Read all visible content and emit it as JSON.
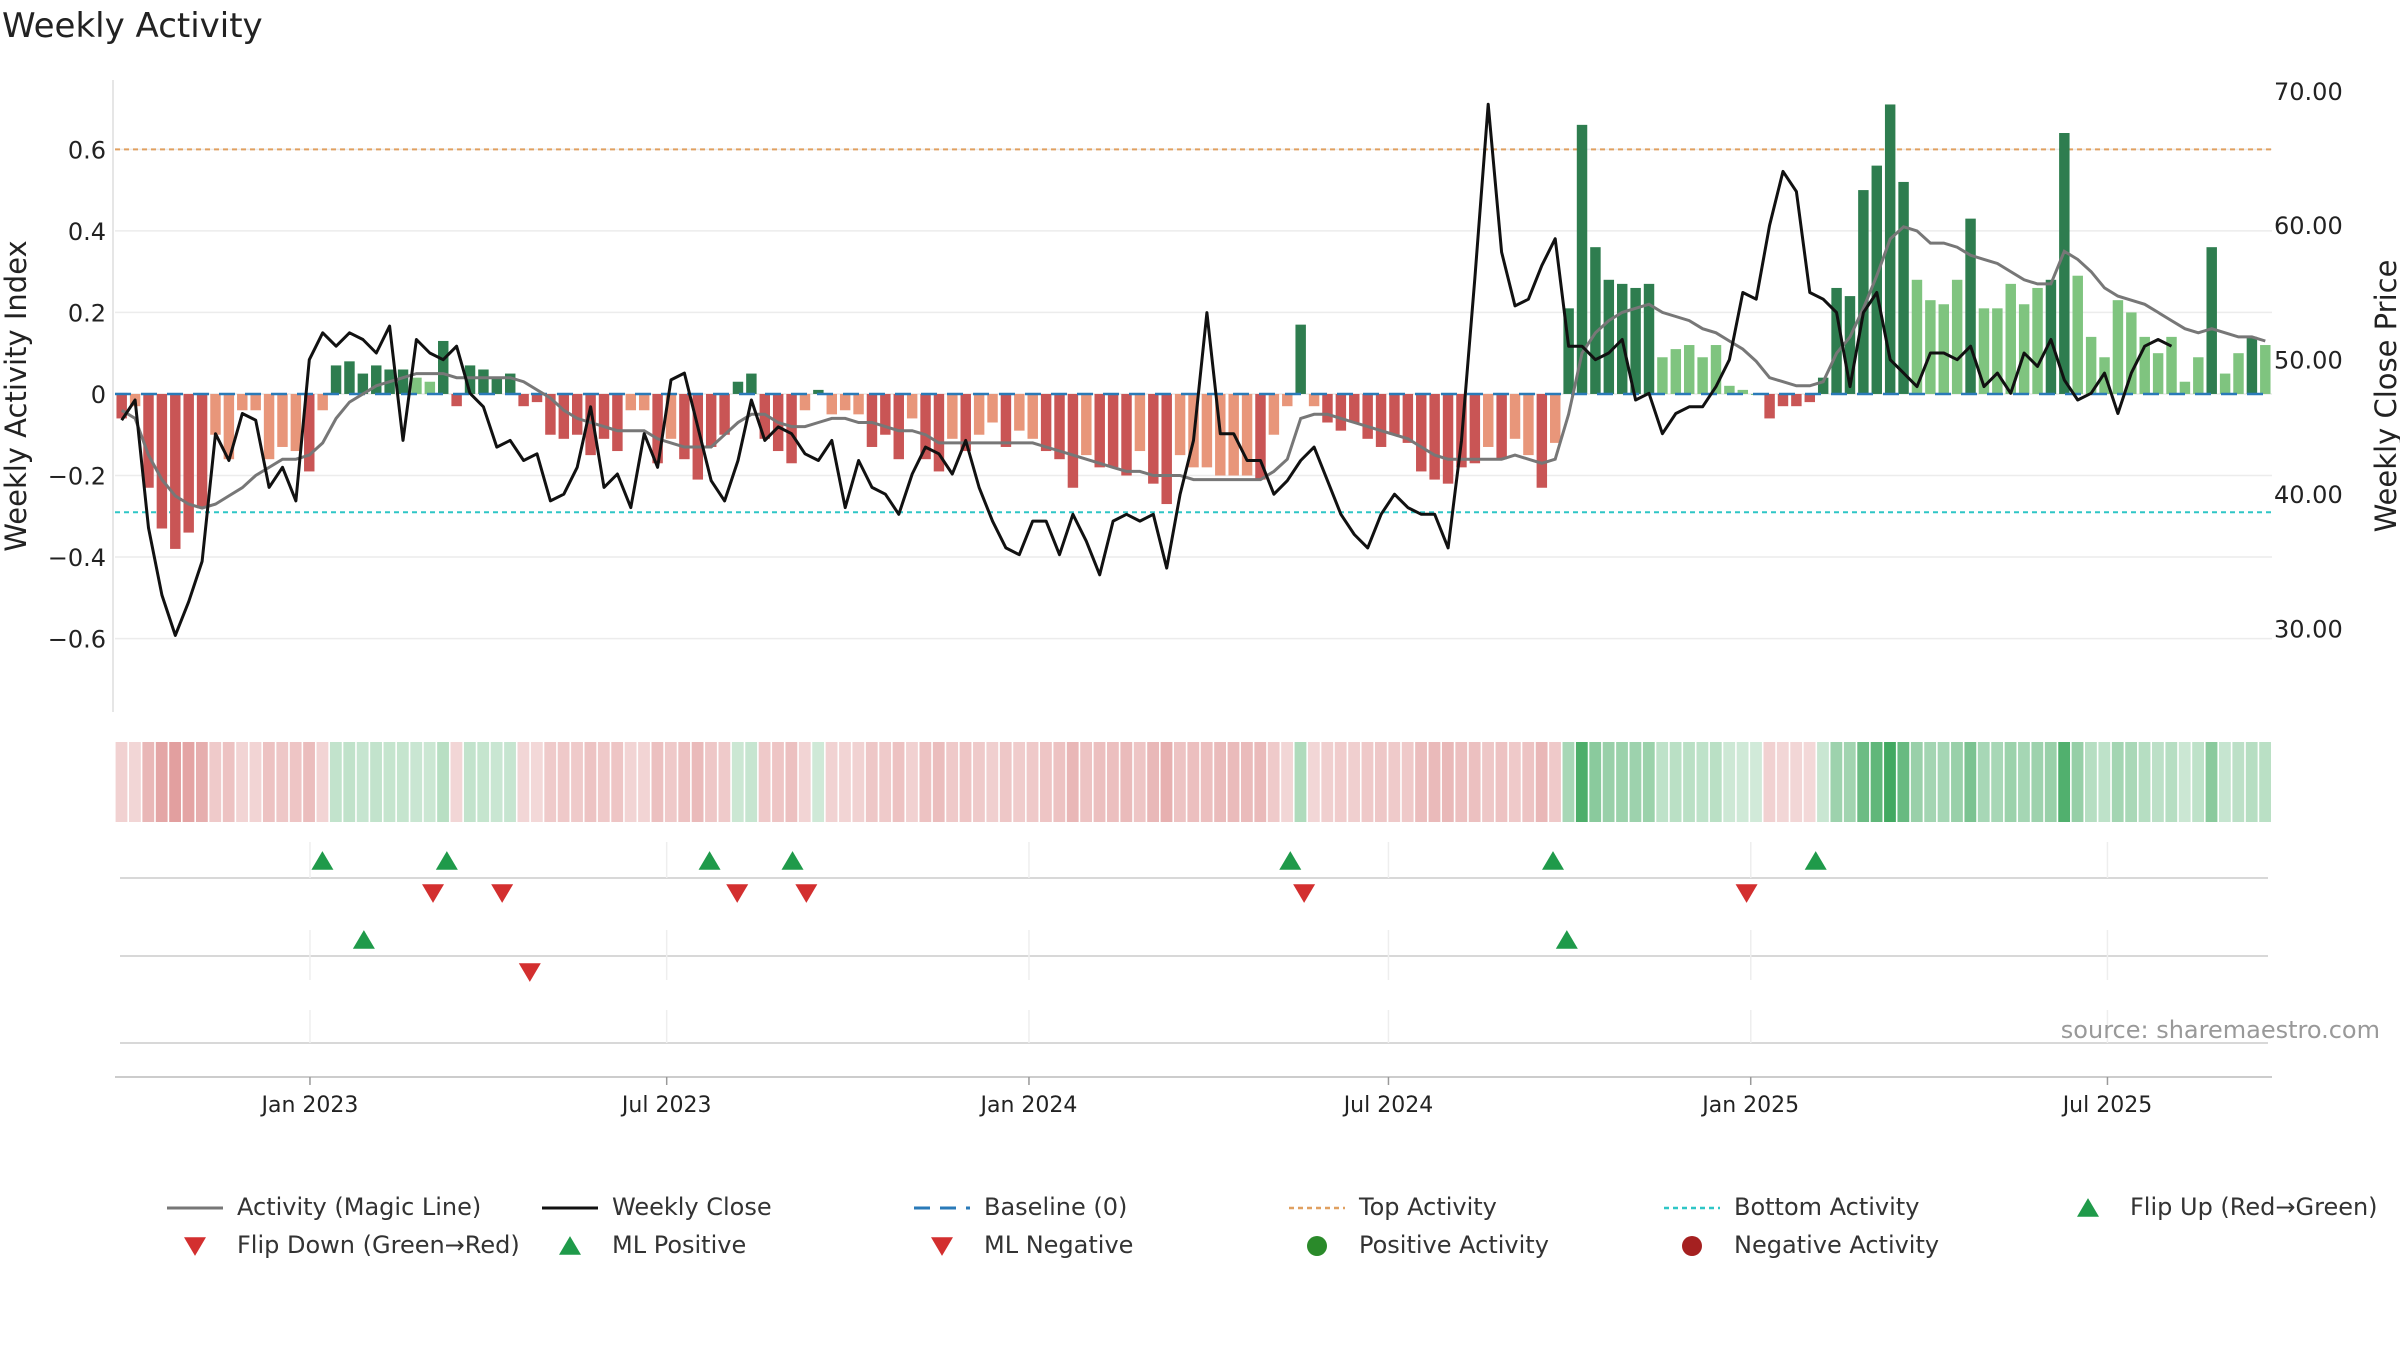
{
  "chart_data": {
    "type": "bar",
    "title": "Weekly Activity",
    "ylabel": "Weekly Activity Index",
    "ylabel_right": "Weekly Close Price",
    "ylim": [
      -0.78,
      0.77
    ],
    "ylim_right": [
      23.8,
      70.8
    ],
    "yticks": [
      {
        "v": 0.6,
        "label": "0.6"
      },
      {
        "v": 0.4,
        "label": "0.4"
      },
      {
        "v": 0.2,
        "label": "0.2"
      },
      {
        "v": 0,
        "label": "0"
      },
      {
        "v": -0.2,
        "label": "−0.2"
      },
      {
        "v": -0.4,
        "label": "−0.4"
      },
      {
        "v": -0.6,
        "label": "−0.6"
      }
    ],
    "yticks_right": [
      {
        "v": 70,
        "label": "70.00"
      },
      {
        "v": 60,
        "label": "60.00"
      },
      {
        "v": 50,
        "label": "50.00"
      },
      {
        "v": 40,
        "label": "40.00"
      },
      {
        "v": 30,
        "label": "30.00"
      }
    ],
    "x_range_weeks": [
      0,
      156
    ],
    "xticks": [
      {
        "week": 14.1,
        "label": "Jan 2023"
      },
      {
        "week": 39.9,
        "label": "Jul 2023"
      },
      {
        "week": 66.1,
        "label": "Jan 2024"
      },
      {
        "week": 92.1,
        "label": "Jul 2024"
      },
      {
        "week": 118.3,
        "label": "Jan 2025"
      },
      {
        "week": 144.1,
        "label": "Jul 2025"
      }
    ],
    "top_activity": 0.6,
    "bottom_activity": -0.29,
    "baseline": 0,
    "activity": [
      -0.06,
      -0.03,
      -0.23,
      -0.33,
      -0.38,
      -0.34,
      -0.28,
      -0.1,
      -0.16,
      -0.04,
      -0.04,
      -0.16,
      -0.13,
      -0.14,
      -0.19,
      -0.04,
      0.07,
      0.08,
      0.05,
      0.07,
      0.06,
      0.06,
      0.04,
      0.03,
      0.13,
      -0.03,
      0.07,
      0.06,
      0.04,
      0.05,
      -0.03,
      -0.02,
      -0.1,
      -0.11,
      -0.1,
      -0.15,
      -0.11,
      -0.14,
      -0.04,
      -0.04,
      -0.17,
      -0.11,
      -0.16,
      -0.21,
      -0.13,
      -0.1,
      0.03,
      0.05,
      -0.11,
      -0.14,
      -0.17,
      -0.04,
      0.01,
      -0.05,
      -0.04,
      -0.05,
      -0.13,
      -0.1,
      -0.16,
      -0.06,
      -0.16,
      -0.19,
      -0.11,
      -0.14,
      -0.1,
      -0.07,
      -0.13,
      -0.09,
      -0.11,
      -0.14,
      -0.16,
      -0.23,
      -0.15,
      -0.18,
      -0.18,
      -0.2,
      -0.14,
      -0.22,
      -0.27,
      -0.15,
      -0.18,
      -0.18,
      -0.2,
      -0.2,
      -0.2,
      -0.21,
      -0.1,
      -0.03,
      0.17,
      -0.03,
      -0.07,
      -0.09,
      -0.07,
      -0.11,
      -0.13,
      -0.1,
      -0.12,
      -0.19,
      -0.21,
      -0.22,
      -0.18,
      -0.17,
      -0.13,
      -0.16,
      -0.11,
      -0.15,
      -0.23,
      -0.12,
      0.21,
      0.66,
      0.36,
      0.28,
      0.27,
      0.26,
      0.27,
      0.09,
      0.11,
      0.12,
      0.09,
      0.12,
      0.02,
      0.01,
      0,
      -0.06,
      -0.03,
      -0.03,
      -0.02,
      0.04,
      0.26,
      0.24,
      0.5,
      0.56,
      0.71,
      0.52,
      0.28,
      0.23,
      0.22,
      0.28,
      0.43,
      0.21,
      0.21,
      0.27,
      0.22,
      0.26,
      0.28,
      0.64,
      0.29,
      0.14,
      0.09,
      0.23,
      0.2,
      0.14,
      0.1,
      0.14,
      0.03,
      0.09,
      0.36,
      0.05,
      0.1,
      0.14,
      0.12
    ],
    "magic_line": [
      -0.04,
      -0.06,
      -0.15,
      -0.21,
      -0.25,
      -0.27,
      -0.28,
      -0.27,
      -0.25,
      -0.23,
      -0.2,
      -0.18,
      -0.16,
      -0.16,
      -0.15,
      -0.12,
      -0.06,
      -0.02,
      0.0,
      0.02,
      0.03,
      0.04,
      0.05,
      0.05,
      0.05,
      0.04,
      0.04,
      0.04,
      0.04,
      0.04,
      0.03,
      0.01,
      -0.01,
      -0.04,
      -0.06,
      -0.07,
      -0.08,
      -0.09,
      -0.09,
      -0.09,
      -0.11,
      -0.12,
      -0.13,
      -0.13,
      -0.13,
      -0.1,
      -0.07,
      -0.05,
      -0.05,
      -0.07,
      -0.08,
      -0.08,
      -0.07,
      -0.06,
      -0.06,
      -0.07,
      -0.07,
      -0.08,
      -0.09,
      -0.09,
      -0.1,
      -0.12,
      -0.12,
      -0.12,
      -0.12,
      -0.12,
      -0.12,
      -0.12,
      -0.12,
      -0.13,
      -0.14,
      -0.15,
      -0.16,
      -0.17,
      -0.18,
      -0.19,
      -0.19,
      -0.2,
      -0.2,
      -0.2,
      -0.21,
      -0.21,
      -0.21,
      -0.21,
      -0.21,
      -0.21,
      -0.19,
      -0.16,
      -0.06,
      -0.05,
      -0.05,
      -0.06,
      -0.07,
      -0.08,
      -0.09,
      -0.1,
      -0.11,
      -0.13,
      -0.15,
      -0.16,
      -0.16,
      -0.16,
      -0.16,
      -0.16,
      -0.15,
      -0.16,
      -0.17,
      -0.16,
      -0.05,
      0.1,
      0.15,
      0.18,
      0.2,
      0.21,
      0.22,
      0.2,
      0.19,
      0.18,
      0.16,
      0.15,
      0.13,
      0.11,
      0.08,
      0.04,
      0.03,
      0.02,
      0.02,
      0.03,
      0.1,
      0.14,
      0.21,
      0.29,
      0.38,
      0.41,
      0.4,
      0.37,
      0.37,
      0.36,
      0.34,
      0.33,
      0.32,
      0.3,
      0.28,
      0.27,
      0.27,
      0.35,
      0.33,
      0.3,
      0.26,
      0.24,
      0.23,
      0.22,
      0.2,
      0.18,
      0.16,
      0.15,
      0.16,
      0.15,
      0.14,
      0.14,
      0.13
    ],
    "weekly_close": [
      45.5,
      47.0,
      37.5,
      32.5,
      29.5,
      32.0,
      35.0,
      44.5,
      42.5,
      46.0,
      45.5,
      40.5,
      42.0,
      39.5,
      50.0,
      52.0,
      51.0,
      52.0,
      51.5,
      50.5,
      52.5,
      44.0,
      51.5,
      50.5,
      50.0,
      51.0,
      47.5,
      46.5,
      43.5,
      44.0,
      42.5,
      43.0,
      39.5,
      40.0,
      42.0,
      46.5,
      40.5,
      41.5,
      39.0,
      44.5,
      42.0,
      48.5,
      49.0,
      45.0,
      41.0,
      39.5,
      42.5,
      47.0,
      44.0,
      45.0,
      44.5,
      43.0,
      42.5,
      44.0,
      39.0,
      42.5,
      40.5,
      40.0,
      38.5,
      41.5,
      43.5,
      43.0,
      41.5,
      44.0,
      40.5,
      38.0,
      36.0,
      35.5,
      38.0,
      38.0,
      35.5,
      38.5,
      36.5,
      34.0,
      38.0,
      38.5,
      38.0,
      38.5,
      34.5,
      40.0,
      44.0,
      53.5,
      44.5,
      44.5,
      42.5,
      42.5,
      40.0,
      41.0,
      42.5,
      43.5,
      41.0,
      38.5,
      37.0,
      36.0,
      38.5,
      40.0,
      39.0,
      38.5,
      38.5,
      36.0,
      44.0,
      56.0,
      69.0,
      58.0,
      54.0,
      54.5,
      57.0,
      59.0,
      51.0,
      51.0,
      50.0,
      50.5,
      51.5,
      47.0,
      47.5,
      44.5,
      46.0,
      46.5,
      46.5,
      48.0,
      50.0,
      55.0,
      54.5,
      60.0,
      64.0,
      62.5,
      55.0,
      54.5,
      53.5,
      48.0,
      53.5,
      55.0,
      50.0,
      49.0,
      48.0,
      50.5,
      50.5,
      50.0,
      51.0,
      48.0,
      49.0,
      47.5,
      50.5,
      49.5,
      51.5,
      48.5,
      47.0,
      47.5,
      49.0,
      46.0,
      49.0,
      51.0,
      51.5,
      51.0
    ],
    "flip_up_weeks": [
      15,
      24,
      43,
      49,
      85,
      104,
      123
    ],
    "flip_down_weeks": [
      23,
      28,
      45,
      50,
      86,
      118
    ],
    "ml_positive_weeks": [
      18,
      105
    ],
    "ml_negative_weeks": [
      30
    ],
    "legend": [
      {
        "key": "magic",
        "label": "Activity (Magic Line)"
      },
      {
        "key": "close",
        "label": "Weekly Close"
      },
      {
        "key": "baseline",
        "label": "Baseline (0)"
      },
      {
        "key": "top",
        "label": "Top Activity"
      },
      {
        "key": "bottom",
        "label": "Bottom Activity"
      },
      {
        "key": "flipup",
        "label": "Flip Up (Red→Green)"
      },
      {
        "key": "flipdown",
        "label": "Flip Down (Green→Red)"
      },
      {
        "key": "mlpos",
        "label": "ML Positive"
      },
      {
        "key": "mlneg",
        "label": "ML Negative"
      },
      {
        "key": "posact",
        "label": "Positive Activity"
      },
      {
        "key": "negact",
        "label": "Negative Activity"
      }
    ],
    "source": "source: sharemaestro.com"
  },
  "colors": {
    "pos_dark": "#2e7d4f",
    "pos_light": "#7fc47f",
    "neg_dark": "#c95555",
    "neg_light": "#e8967a",
    "magic": "#777777",
    "close": "#111111",
    "baseline": "#2a7ab8",
    "top": "#e0a060",
    "bottom": "#2ec6c6",
    "flip_up": "#1f9a4a",
    "flip_down": "#d32f2f",
    "pos_dot": "#2a8a2a",
    "neg_dot": "#a52020"
  }
}
